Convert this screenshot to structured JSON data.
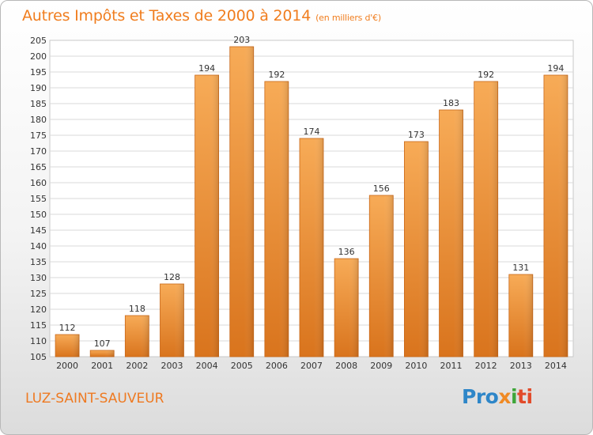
{
  "title": "Autres Impôts et Taxes de 2000 à 2014",
  "unit_note": "(en milliers d'€)",
  "city": "LUZ-SAINT-SAUVEUR",
  "brand": {
    "p1": "Pro",
    "p2": "x",
    "p3": "i",
    "p4": "ti"
  },
  "colors": {
    "bar": "#f29b3f",
    "bar_dark": "#d9741d",
    "title": "#f07d1e",
    "grid": "#d8d8d8"
  },
  "chart_data": {
    "type": "bar",
    "title": "Autres Impôts et Taxes de 2000 à 2014",
    "categories": [
      "2000",
      "2001",
      "2002",
      "2003",
      "2004",
      "2005",
      "2006",
      "2007",
      "2008",
      "2009",
      "2010",
      "2011",
      "2012",
      "2013",
      "2014"
    ],
    "values": [
      112,
      107,
      118,
      128,
      194,
      203,
      192,
      174,
      136,
      156,
      173,
      183,
      192,
      131,
      194
    ],
    "ylim": [
      105,
      205
    ],
    "ytick_step": 5,
    "grid": true
  }
}
